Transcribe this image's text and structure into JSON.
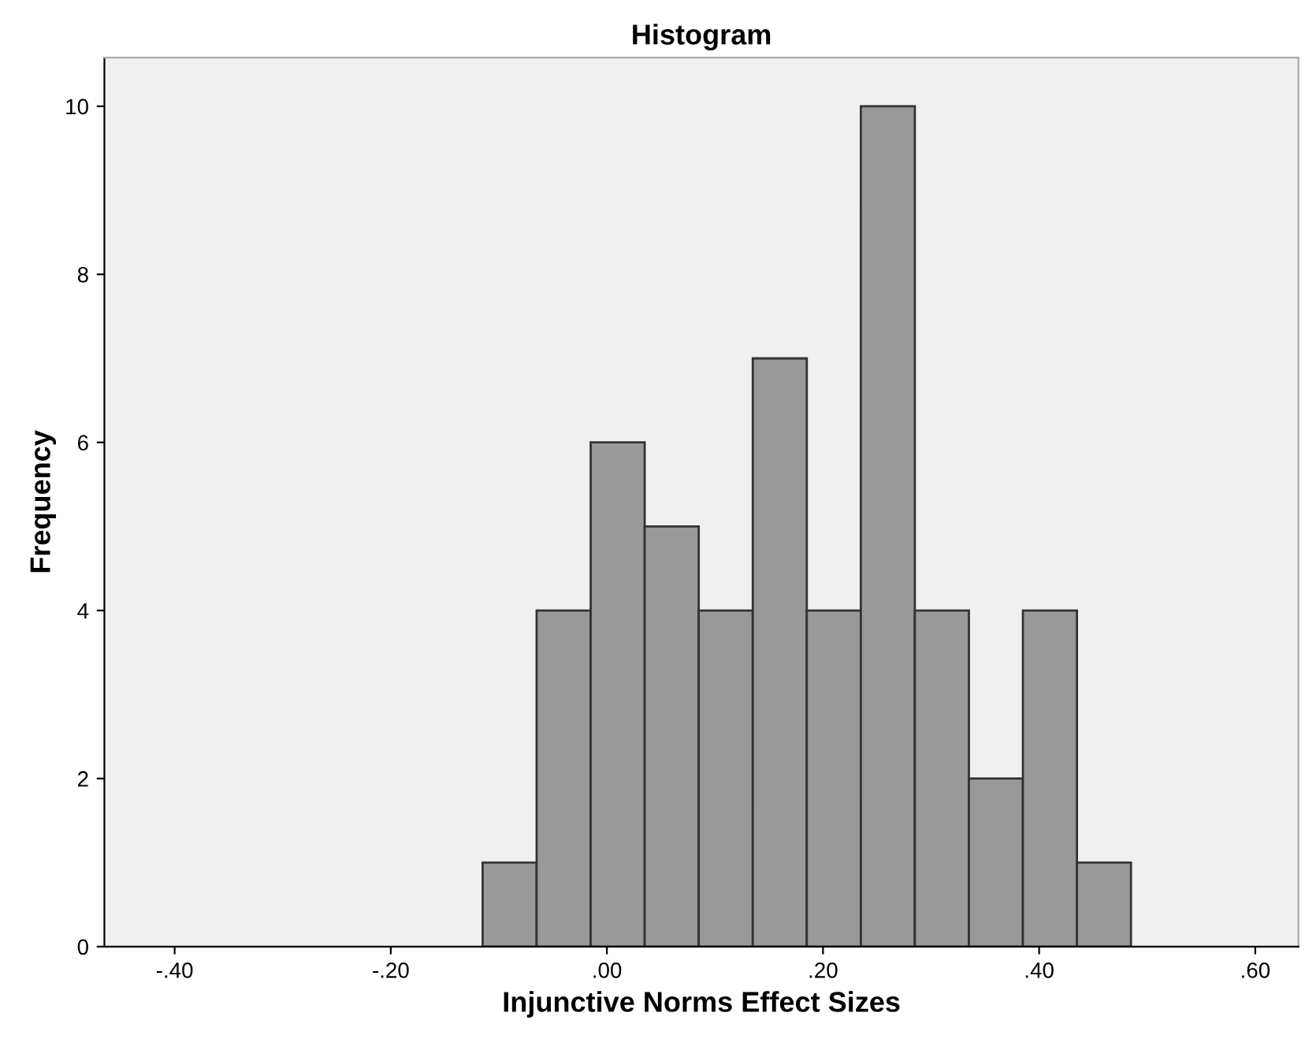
{
  "chart_data": {
    "type": "histogram",
    "title": "Histogram",
    "xlabel": "Injunctive Norms Effect Sizes",
    "ylabel": "Frequency",
    "bins": [
      -0.115,
      -0.065,
      -0.015,
      0.035,
      0.085,
      0.135,
      0.185,
      0.235,
      0.285,
      0.335,
      0.385,
      0.435,
      0.485
    ],
    "values": [
      1,
      4,
      6,
      5,
      4,
      7,
      4,
      10,
      4,
      2,
      4,
      1
    ],
    "color": "#999999",
    "xlim": [
      -0.465,
      0.64
    ],
    "xticks": [
      {
        "value": -0.4,
        "label": "-.40"
      },
      {
        "value": -0.2,
        "label": "-.20"
      },
      {
        "value": 0,
        "label": ".00"
      },
      {
        "value": 0.2,
        "label": ".20"
      },
      {
        "value": 0.4,
        "label": ".40"
      },
      {
        "value": 0.6,
        "label": ".60"
      }
    ],
    "ylim": [
      0,
      10.58
    ],
    "yticks": [
      0,
      2,
      4,
      6,
      8,
      10
    ],
    "grid": false,
    "legend": false
  }
}
